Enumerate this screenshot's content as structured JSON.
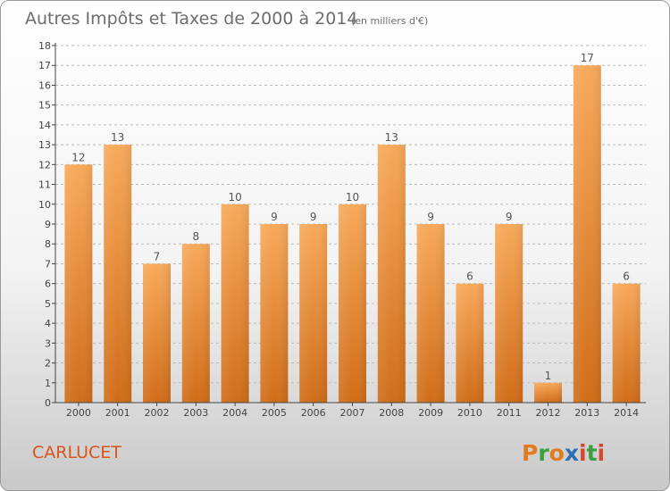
{
  "header": {
    "title": "Autres Impôts et Taxes de 2000 à 2014",
    "unit": "(en milliers d'€)"
  },
  "footer": {
    "place": "CARLUCET",
    "logo_letters": [
      "P",
      "r",
      "o",
      "x",
      "i",
      "t",
      "i"
    ],
    "logo_colors": [
      "#e07b20",
      "#3aa142",
      "#e07b20",
      "#2f6db5",
      "#d8452f",
      "#3aa142",
      "#d8452f"
    ]
  },
  "colors": {
    "bar_top": "#f8a95a",
    "bar_bottom": "#d06c18",
    "axis": "#444444",
    "grid": "#bbbbbb"
  },
  "chart_data": {
    "type": "bar",
    "title": "Autres Impôts et Taxes de 2000 à 2014",
    "xlabel": "",
    "ylabel": "",
    "categories": [
      "2000",
      "2001",
      "2002",
      "2003",
      "2004",
      "2005",
      "2006",
      "2007",
      "2008",
      "2009",
      "2010",
      "2011",
      "2012",
      "2013",
      "2014"
    ],
    "values": [
      12,
      13,
      7,
      8,
      10,
      9,
      9,
      10,
      13,
      9,
      6,
      9,
      1,
      17,
      6
    ],
    "ylim": [
      0,
      18
    ],
    "yticks": [
      0,
      1,
      2,
      3,
      4,
      5,
      6,
      7,
      8,
      9,
      10,
      11,
      12,
      13,
      14,
      15,
      16,
      17,
      18
    ],
    "grid": true,
    "legend": "none"
  }
}
